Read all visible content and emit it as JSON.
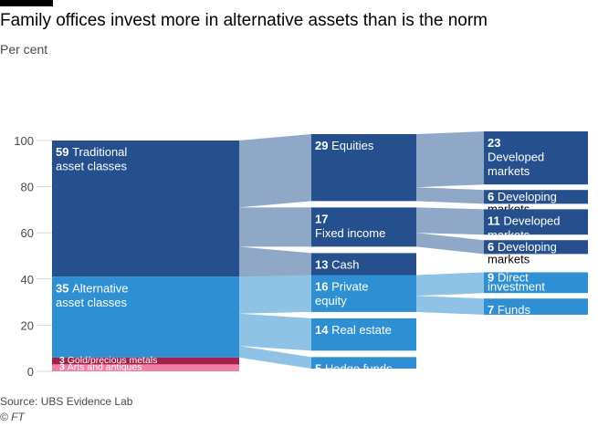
{
  "title": "Family offices invest more in alternative assets than is the norm",
  "subtitle": "Per cent",
  "source": "Source: UBS Evidence Lab",
  "credit": "© FT",
  "colors": {
    "dark": "#26508d",
    "light": "#2e8fd3",
    "link_dark": "#8fa8c8",
    "link_light": "#8fc3e6",
    "gold": "#a3224c",
    "arts": "#f080a4"
  },
  "chart_data": {
    "type": "sankey",
    "title": "Family offices invest more in alternative assets than is the norm",
    "ylabel": "Per cent",
    "ylim": [
      0,
      100
    ],
    "yticks": [
      0,
      20,
      40,
      60,
      80,
      100
    ],
    "columns": [
      [
        {
          "id": "trad",
          "value": 59,
          "label": "Traditional asset classes",
          "lines": [
            "Traditional",
            "asset classes"
          ],
          "color": "dark"
        },
        {
          "id": "alt",
          "value": 35,
          "label": "Alternative asset classes",
          "lines": [
            "Alternative",
            "asset classes"
          ],
          "color": "light"
        },
        {
          "id": "gold",
          "value": 3,
          "label": "Gold/precious metals",
          "lines": [
            "Gold/precious metals"
          ],
          "color": "gold",
          "small": true
        },
        {
          "id": "arts",
          "value": 3,
          "label": "Arts and antiques",
          "lines": [
            "Arts and antiques"
          ],
          "color": "arts",
          "small": true
        }
      ],
      [
        {
          "id": "eq",
          "parent": "trad",
          "value": 29,
          "label": "Equities",
          "lines": [
            "Equities"
          ],
          "color": "dark"
        },
        {
          "id": "fi",
          "parent": "trad",
          "value": 17,
          "label": "Fixed income",
          "lines": [
            "",
            "Fixed income"
          ],
          "color": "dark"
        },
        {
          "id": "cash",
          "parent": "trad",
          "value": 13,
          "label": "Cash",
          "lines": [
            "Cash"
          ],
          "color": "dark"
        },
        {
          "id": "pe",
          "parent": "alt",
          "value": 16,
          "label": "Private equity",
          "lines": [
            "Private",
            "equity"
          ],
          "color": "light"
        },
        {
          "id": "re",
          "parent": "alt",
          "value": 14,
          "label": "Real estate",
          "lines": [
            "Real estate"
          ],
          "color": "light"
        },
        {
          "id": "hf",
          "parent": "alt",
          "value": 5,
          "label": "Hedge funds",
          "lines": [
            "Hedge funds"
          ],
          "color": "light"
        }
      ],
      [
        {
          "id": "eq_dev",
          "parent": "eq",
          "value": 23,
          "label": "Developed markets",
          "lines": [
            "",
            "Developed",
            "markets"
          ],
          "color": "dark"
        },
        {
          "id": "eq_dvg",
          "parent": "eq",
          "value": 6,
          "label": "Developing markets",
          "lines": [
            "Developing",
            "markets"
          ],
          "color": "dark",
          "overflow": true
        },
        {
          "id": "fi_dev",
          "parent": "fi",
          "value": 11,
          "label": "Developed markets",
          "lines": [
            "Developed",
            "markets"
          ],
          "color": "dark"
        },
        {
          "id": "fi_dvg",
          "parent": "fi",
          "value": 6,
          "label": "Developing markets",
          "lines": [
            "Developing",
            "markets"
          ],
          "color": "dark",
          "overflow": true
        },
        {
          "id": "pe_dir",
          "parent": "pe",
          "value": 9,
          "label": "Direct investment",
          "lines": [
            "Direct",
            "investment"
          ],
          "color": "light",
          "compact": true
        },
        {
          "id": "pe_funds",
          "parent": "pe",
          "value": 7,
          "label": "Funds",
          "lines": [
            "Funds"
          ],
          "color": "light"
        }
      ]
    ]
  }
}
